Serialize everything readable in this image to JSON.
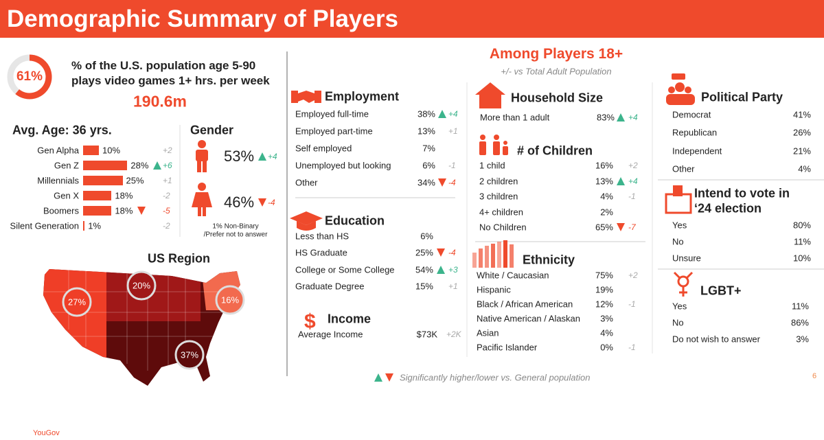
{
  "header": {
    "title": "Demographic Summary of Players"
  },
  "headline": {
    "percent": 61,
    "percent_label": "61%",
    "lines": [
      "% of the U.S. population age 5-90",
      "plays video games 1+ hrs. per week"
    ],
    "count": "190.6m"
  },
  "age": {
    "title": "Avg. Age: 36 yrs.",
    "rows": [
      {
        "name": "Gen Alpha",
        "value": 10,
        "label": "10%",
        "diff": "+2"
      },
      {
        "name": "Gen Z",
        "value": 28,
        "label": "28%",
        "diff": "+6",
        "sig": "up"
      },
      {
        "name": "Millennials",
        "value": 25,
        "label": "25%",
        "diff": "+1"
      },
      {
        "name": "Gen X",
        "value": 18,
        "label": "18%",
        "diff": "-2"
      },
      {
        "name": "Boomers",
        "value": 18,
        "label": "18%",
        "diff": "-5",
        "sig": "down"
      },
      {
        "name": "Silent Generation",
        "value": 1,
        "label": "1%",
        "diff": "-2"
      }
    ]
  },
  "gender": {
    "title": "Gender",
    "male": {
      "value": "53%",
      "diff": "+4",
      "sig": "up"
    },
    "female": {
      "value": "46%",
      "diff": "-4",
      "sig": "down"
    },
    "note": [
      "1% Non-Binary",
      "/Prefer not to answer"
    ]
  },
  "region": {
    "title": "US Region",
    "west": "27%",
    "midwest": "20%",
    "northeast": "16%",
    "south": "37%"
  },
  "adults": {
    "title": "Among Players 18+",
    "subtitle": "+/- vs Total Adult Population"
  },
  "employment": {
    "title": "Employment",
    "rows": [
      {
        "name": "Employed full-time",
        "value": "38%",
        "diff": "+4",
        "sig": "up"
      },
      {
        "name": "Employed part-time",
        "value": "13%",
        "diff": "+1"
      },
      {
        "name": "Self employed",
        "value": "7%"
      },
      {
        "name": "Unemployed but looking",
        "value": "6%",
        "diff": "-1"
      },
      {
        "name": "Other",
        "value": "34%",
        "diff": "-4",
        "sig": "down"
      }
    ]
  },
  "education": {
    "title": "Education",
    "rows": [
      {
        "name": "Less than HS",
        "value": "6%"
      },
      {
        "name": "HS Graduate",
        "value": "25%",
        "diff": "-4",
        "sig": "down"
      },
      {
        "name": "College or Some College",
        "value": "54%",
        "diff": "+3",
        "sig": "up"
      },
      {
        "name": "Graduate Degree",
        "value": "15%",
        "diff": "+1"
      }
    ]
  },
  "income": {
    "title": "Income",
    "rows": [
      {
        "name": "Average Income",
        "value": "$73K",
        "diff": "+2K"
      }
    ]
  },
  "household": {
    "title": "Household Size",
    "rows": [
      {
        "name": "More than 1 adult",
        "value": "83%",
        "diff": "+4",
        "sig": "up"
      }
    ]
  },
  "children": {
    "title": "# of Children",
    "rows": [
      {
        "name": "1 child",
        "value": "16%",
        "diff": "+2"
      },
      {
        "name": "2 children",
        "value": "13%",
        "diff": "+4",
        "sig": "up"
      },
      {
        "name": "3 children",
        "value": "4%",
        "diff": "-1"
      },
      {
        "name": "4+ children",
        "value": "2%"
      },
      {
        "name": "No Children",
        "value": "65%",
        "diff": "-7",
        "sig": "down"
      }
    ]
  },
  "ethnicity": {
    "title": "Ethnicity",
    "rows": [
      {
        "name": "White / Caucasian",
        "value": "75%",
        "diff": "+2"
      },
      {
        "name": "Hispanic",
        "value": "19%"
      },
      {
        "name": "Black / African American",
        "value": "12%",
        "diff": "-1"
      },
      {
        "name": "Native American / Alaskan",
        "value": "3%"
      },
      {
        "name": "Asian",
        "value": "4%"
      },
      {
        "name": "Pacific Islander",
        "value": "0%",
        "diff": "-1"
      }
    ]
  },
  "party": {
    "title": "Political Party",
    "rows": [
      {
        "name": "Democrat",
        "value": "41%"
      },
      {
        "name": "Republican",
        "value": "26%"
      },
      {
        "name": "Independent",
        "value": "21%"
      },
      {
        "name": "Other",
        "value": "4%"
      }
    ]
  },
  "vote": {
    "title": [
      "Intend to vote in",
      "‘24 election"
    ],
    "rows": [
      {
        "name": "Yes",
        "value": "80%"
      },
      {
        "name": "No",
        "value": "11%"
      },
      {
        "name": "Unsure",
        "value": "10%"
      }
    ]
  },
  "lgbt": {
    "title": "LGBT+",
    "rows": [
      {
        "name": "Yes",
        "value": "11%"
      },
      {
        "name": "No",
        "value": "86%"
      },
      {
        "name": "Do not wish to answer",
        "value": "3%"
      }
    ]
  },
  "footer": {
    "legend": "Significantly higher/lower vs. General population",
    "page": "6",
    "brand": "YouGov"
  }
}
